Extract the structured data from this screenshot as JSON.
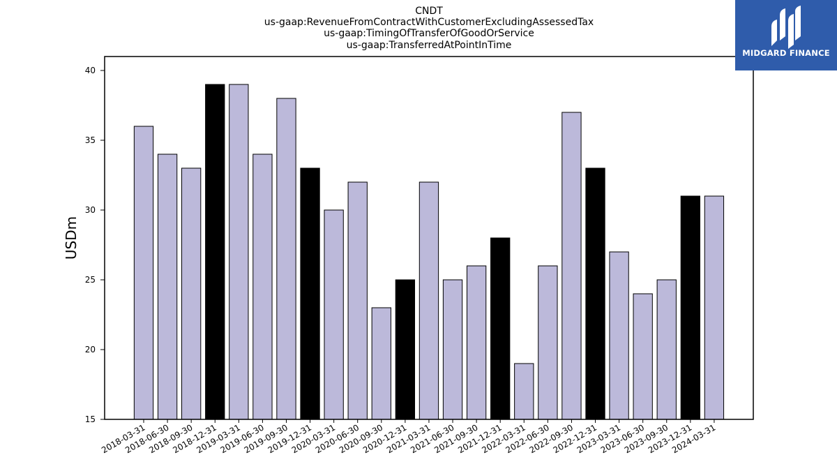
{
  "chart_data": {
    "type": "bar",
    "title_lines": [
      "CNDT",
      "us-gaap:RevenueFromContractWithCustomerExcludingAssessedTax",
      "us-gaap:TimingOfTransferOfGoodOrService",
      "us-gaap:TransferredAtPointInTime"
    ],
    "ylabel": "USDm",
    "xlabel": "",
    "ylim": [
      15,
      41
    ],
    "yticks": [
      15,
      20,
      25,
      30,
      35,
      40
    ],
    "categories": [
      "2018-03-31",
      "2018-06-30",
      "2018-09-30",
      "2018-12-31",
      "2019-03-31",
      "2019-06-30",
      "2019-09-30",
      "2019-12-31",
      "2020-03-31",
      "2020-06-30",
      "2020-09-30",
      "2020-12-31",
      "2021-03-31",
      "2021-06-30",
      "2021-09-30",
      "2021-12-31",
      "2022-03-31",
      "2022-06-30",
      "2022-09-30",
      "2022-12-31",
      "2023-03-31",
      "2023-06-30",
      "2023-09-30",
      "2023-12-31",
      "2024-03-31"
    ],
    "values": [
      36,
      34,
      33,
      39,
      39,
      34,
      38,
      33,
      30,
      32,
      23,
      25,
      32,
      25,
      26,
      28,
      19,
      26,
      37,
      33,
      27,
      24,
      25,
      31,
      31
    ],
    "highlight": [
      false,
      false,
      false,
      true,
      false,
      false,
      false,
      true,
      false,
      false,
      false,
      true,
      false,
      false,
      false,
      true,
      false,
      false,
      false,
      true,
      false,
      false,
      false,
      true,
      false
    ],
    "colors": {
      "bar": "#bcb9da",
      "highlight": "#000000",
      "edge": "#000000"
    },
    "grid": false,
    "legend": "none"
  },
  "logo": {
    "text": "MIDGARD FINANCE",
    "background": "#2f5cab"
  }
}
